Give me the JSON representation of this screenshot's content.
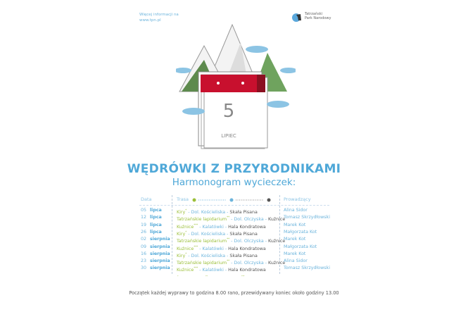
{
  "info": {
    "line1": "Więcej informacji na",
    "line2": "www.tpn.pl"
  },
  "logo": {
    "line1": "Tatrzański",
    "line2": "Park Narodowy"
  },
  "calendar": {
    "day": "5",
    "month": "LIPIEC"
  },
  "title": "WĘDRÓWKI Z PRZYRODNIKAMI",
  "subtitle": "Harmonogram wycieczek:",
  "headers": {
    "date": "Data",
    "route": "Trasa",
    "leader": "Prowadzący"
  },
  "colors": {
    "green": "#9bbf3a",
    "blue": "#6cb4dc",
    "dark": "#555555",
    "red": "#c8102e"
  },
  "rows": [
    {
      "day": "05",
      "month": "lipca",
      "r": [
        [
          "Kiry",
          "g"
        ],
        [
          "*",
          "g"
        ],
        [
          " - Dol. Kościeliska - ",
          "b"
        ],
        [
          "Skała Pisana",
          "k"
        ]
      ],
      "leader": "Alina Sidor"
    },
    {
      "day": "12",
      "month": "lipca",
      "r": [
        [
          "Tatrzańskie lapidarium",
          "g"
        ],
        [
          "**",
          "g"
        ],
        [
          " - Dol. Olczyska - ",
          "b"
        ],
        [
          "Kuźnice",
          "k"
        ]
      ],
      "leader": "Tomasz Skrzydłowski"
    },
    {
      "day": "19",
      "month": "lipca",
      "r": [
        [
          "Kuźnice",
          "g"
        ],
        [
          "***",
          "g"
        ],
        [
          " - Kalatówki - ",
          "b"
        ],
        [
          "Hala Kondratowa",
          "k"
        ]
      ],
      "leader": "Marek Kot"
    },
    {
      "day": "26",
      "month": "lipca",
      "r": [
        [
          "Kiry",
          "g"
        ],
        [
          "*",
          "g"
        ],
        [
          " - Dol. Kościeliska - ",
          "b"
        ],
        [
          "Skała Pisana",
          "k"
        ]
      ],
      "leader": "Małgorzata Kot"
    },
    {
      "day": "02",
      "month": "sierpnia",
      "r": [
        [
          "Tatrzańskie lapidarium",
          "g"
        ],
        [
          "**",
          "g"
        ],
        [
          " - Dol. Olczyska - ",
          "b"
        ],
        [
          "Kuźnice",
          "k"
        ]
      ],
      "leader": "Marek Kot"
    },
    {
      "day": "09",
      "month": "sierpnia",
      "r": [
        [
          "Kuźnice",
          "g"
        ],
        [
          "***",
          "g"
        ],
        [
          " - Kalatówki - ",
          "b"
        ],
        [
          "Hala Kondratowa",
          "k"
        ]
      ],
      "leader": "Małgorzata Kot"
    },
    {
      "day": "16",
      "month": "sierpnia",
      "r": [
        [
          "Kiry",
          "g"
        ],
        [
          "*",
          "g"
        ],
        [
          " - Dol. Kościeliska - ",
          "b"
        ],
        [
          "Skała Pisana",
          "k"
        ]
      ],
      "leader": "Marek Kot"
    },
    {
      "day": "23",
      "month": "sierpnia",
      "r": [
        [
          "Tatrzańskie lapidarium",
          "g"
        ],
        [
          "**",
          "g"
        ],
        [
          " - Dol. Olczyska - ",
          "b"
        ],
        [
          "Kuźnice",
          "k"
        ]
      ],
      "leader": "Alina Sidor"
    },
    {
      "day": "30",
      "month": "sierpnia",
      "r": [
        [
          "Kuźnice",
          "g"
        ],
        [
          "***",
          "g"
        ],
        [
          " - Kalatówki - ",
          "b"
        ],
        [
          "Hala Kondratowa",
          "k"
        ]
      ],
      "leader": "Tomasz Skrzydłowski"
    }
  ],
  "notes": [
    "*",
    "**",
    "***"
  ],
  "footer": "Początek każdej wyprawy to godzina 8.00 rano, przewidywany koniec około godziny 13.00"
}
